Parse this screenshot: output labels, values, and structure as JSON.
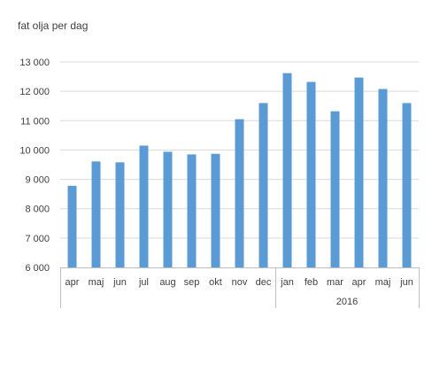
{
  "chart_data": {
    "type": "bar",
    "title": "",
    "ylabel": "fat olja per dag",
    "xlabel": "",
    "categories": [
      "apr",
      "maj",
      "jun",
      "jul",
      "aug",
      "sep",
      "okt",
      "nov",
      "dec",
      "jan",
      "feb",
      "mar",
      "apr",
      "maj",
      "jun"
    ],
    "category_groups": [
      {
        "label": "",
        "start": 0,
        "end": 8
      },
      {
        "label": "2016",
        "start": 9,
        "end": 14
      }
    ],
    "values": [
      8780,
      9610,
      9580,
      10150,
      9940,
      9850,
      9870,
      11050,
      11600,
      12620,
      12320,
      11320,
      12470,
      12080,
      11600
    ],
    "ylim": [
      6000,
      13000
    ],
    "yticks": [
      6000,
      7000,
      8000,
      9000,
      10000,
      11000,
      12000,
      13000
    ],
    "ytick_labels": [
      "6 000",
      "7 000",
      "8 000",
      "9 000",
      "10 000",
      "11 000",
      "12 000",
      "13 000"
    ],
    "grid": true,
    "colors": {
      "bar": "#5B9BD5",
      "grid": "#D9D9D9",
      "axis": "#BFBFBF",
      "text": "#404040"
    }
  }
}
